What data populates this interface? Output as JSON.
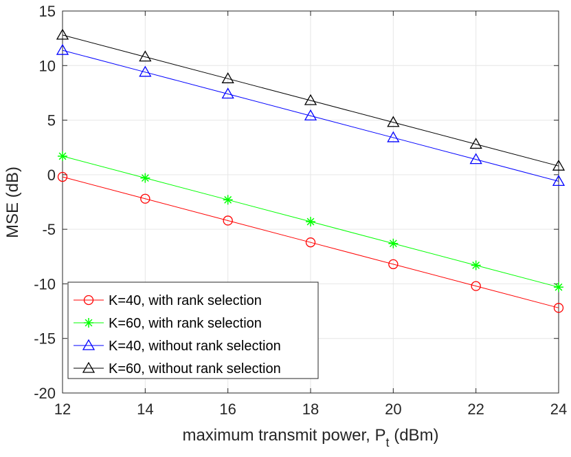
{
  "chart_data": {
    "type": "line",
    "title": "",
    "xlabel_main": "maximum transmit power, P",
    "xlabel_sub": "t",
    "xlabel_tail": " (dBm)",
    "ylabel": "MSE (dB)",
    "xlim": [
      12,
      24
    ],
    "ylim": [
      -20,
      15
    ],
    "xticks": [
      12,
      14,
      16,
      18,
      20,
      22,
      24
    ],
    "yticks": [
      -20,
      -15,
      -10,
      -5,
      0,
      5,
      10,
      15
    ],
    "grid": true,
    "legend_position": "bottom-left",
    "x": [
      12,
      14,
      16,
      18,
      20,
      22,
      24
    ],
    "series": [
      {
        "name": "K=40, with rank selection",
        "color": "#ff0000",
        "marker": "circle",
        "values": [
          -0.2,
          -2.2,
          -4.2,
          -6.2,
          -8.2,
          -10.2,
          -12.2
        ]
      },
      {
        "name": "K=60, with rank selection",
        "color": "#00ff00",
        "marker": "asterisk",
        "values": [
          1.7,
          -0.3,
          -2.3,
          -4.3,
          -6.3,
          -8.3,
          -10.3
        ]
      },
      {
        "name": "K=40, without rank selection",
        "color": "#0000ff",
        "marker": "triangle",
        "values": [
          11.4,
          9.4,
          7.4,
          5.4,
          3.4,
          1.4,
          -0.6
        ]
      },
      {
        "name": "K=60, without rank selection",
        "color": "#000000",
        "marker": "triangle",
        "values": [
          12.8,
          10.8,
          8.8,
          6.8,
          4.8,
          2.8,
          0.8
        ]
      }
    ]
  }
}
